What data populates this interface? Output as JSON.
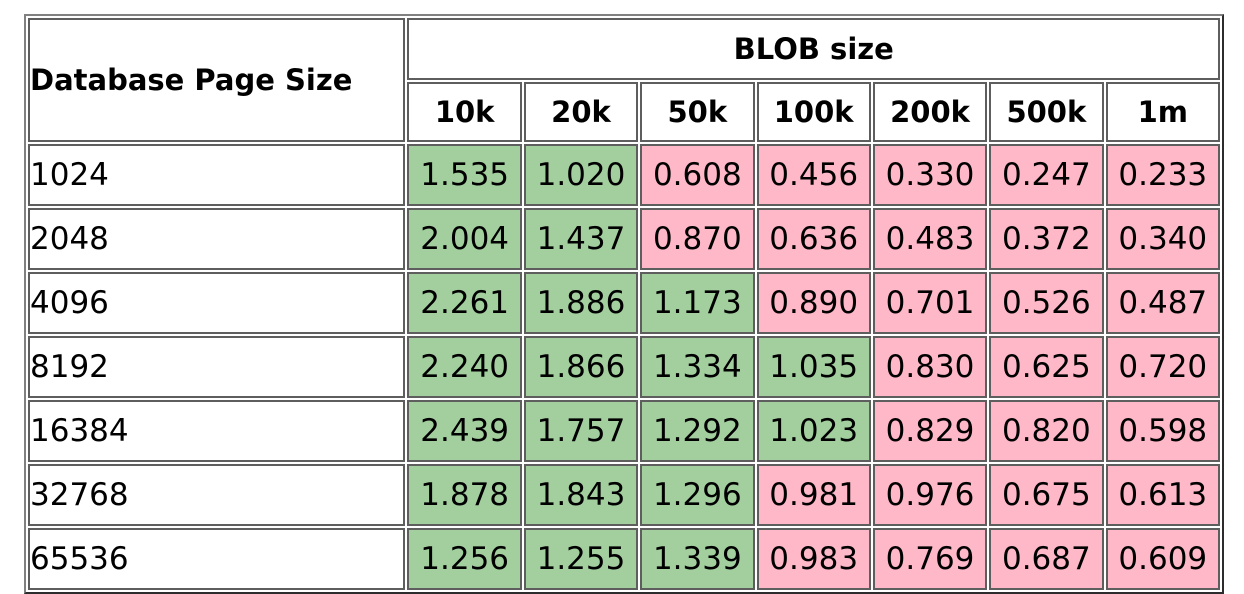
{
  "table": {
    "corner_header": "Database Page Size",
    "group_header": "BLOB size",
    "columns": [
      "10k",
      "20k",
      "50k",
      "100k",
      "200k",
      "500k",
      "1m"
    ],
    "rows": [
      {
        "page_size": "1024",
        "values": [
          "1.535",
          "1.020",
          "0.608",
          "0.456",
          "0.330",
          "0.247",
          "0.233"
        ]
      },
      {
        "page_size": "2048",
        "values": [
          "2.004",
          "1.437",
          "0.870",
          "0.636",
          "0.483",
          "0.372",
          "0.340"
        ]
      },
      {
        "page_size": "4096",
        "values": [
          "2.261",
          "1.886",
          "1.173",
          "0.890",
          "0.701",
          "0.526",
          "0.487"
        ]
      },
      {
        "page_size": "8192",
        "values": [
          "2.240",
          "1.866",
          "1.334",
          "1.035",
          "0.830",
          "0.625",
          "0.720"
        ]
      },
      {
        "page_size": "16384",
        "values": [
          "2.439",
          "1.757",
          "1.292",
          "1.023",
          "0.829",
          "0.820",
          "0.598"
        ]
      },
      {
        "page_size": "32768",
        "values": [
          "1.878",
          "1.843",
          "1.296",
          "0.981",
          "0.976",
          "0.675",
          "0.613"
        ]
      },
      {
        "page_size": "65536",
        "values": [
          "1.256",
          "1.255",
          "1.339",
          "0.983",
          "0.769",
          "0.687",
          "0.609"
        ]
      }
    ]
  },
  "colors": {
    "above_one": "#a3cf9f",
    "below_one": "#ffb8c8",
    "border": "#5e5e5e"
  }
}
